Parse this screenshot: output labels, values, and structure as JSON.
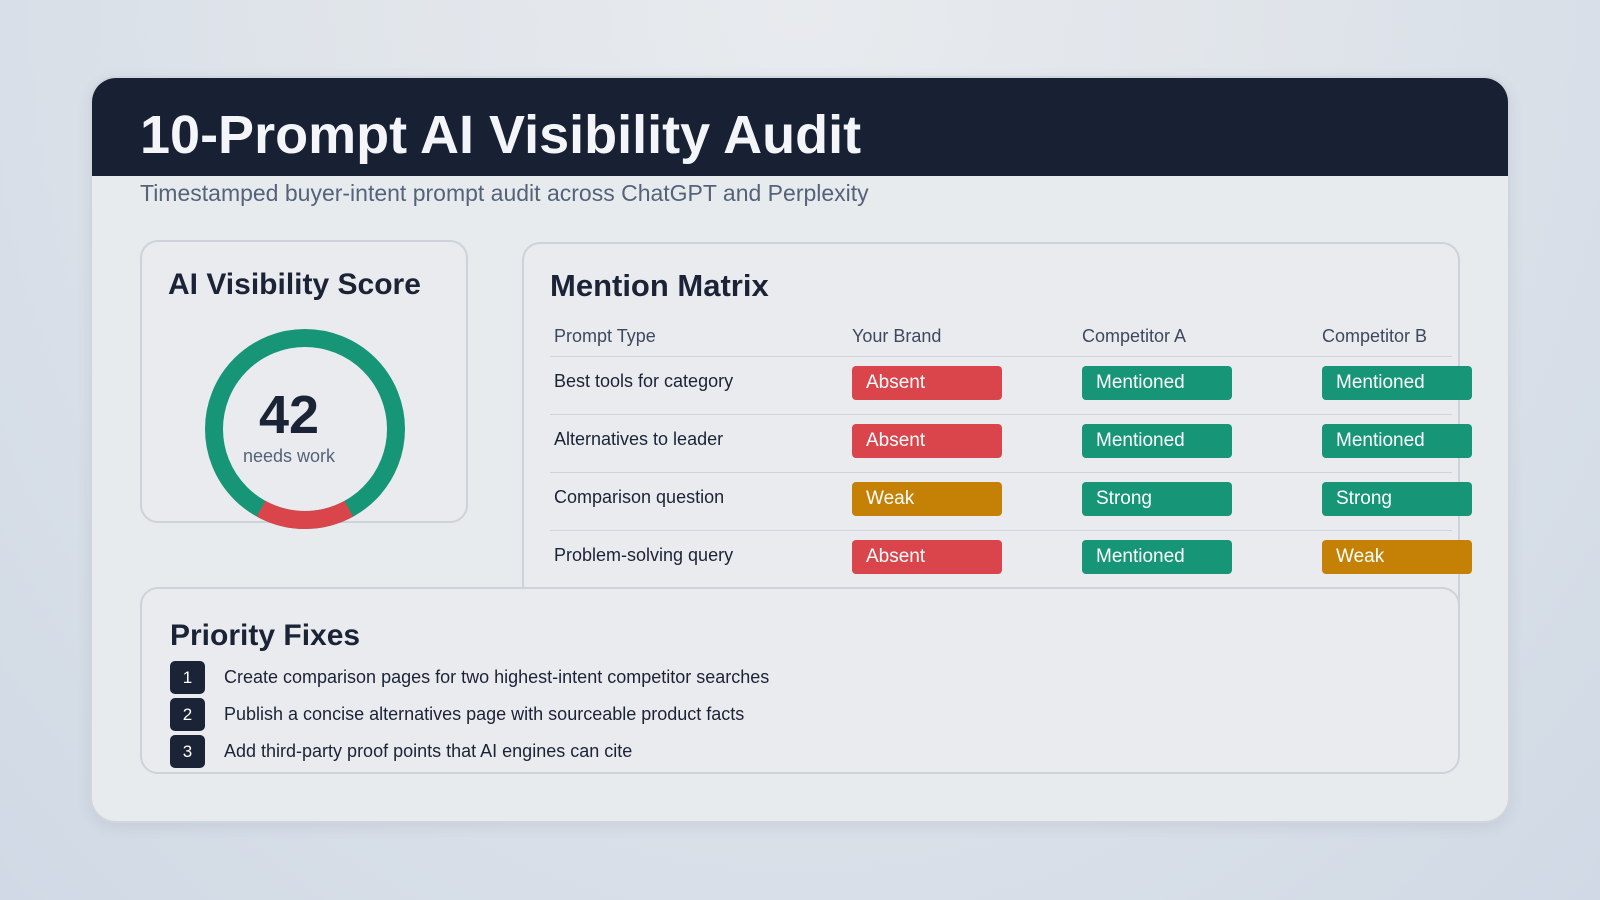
{
  "header": {
    "title": "10-Prompt AI Visibility Audit",
    "subtitle": "Timestamped buyer-intent prompt audit across ChatGPT and Perplexity"
  },
  "score": {
    "title": "AI Visibility Score",
    "value": "42",
    "caption": "needs work",
    "colors": {
      "ok": "#169677",
      "bad": "#d9454b"
    }
  },
  "matrix": {
    "title": "Mention Matrix",
    "columns": [
      "Prompt Type",
      "Your Brand",
      "Competitor A",
      "Competitor B"
    ],
    "rows": [
      {
        "label": "Best tools for category",
        "cells": [
          {
            "text": "Absent",
            "status": "absent"
          },
          {
            "text": "Mentioned",
            "status": "good"
          },
          {
            "text": "Mentioned",
            "status": "good"
          }
        ]
      },
      {
        "label": "Alternatives to leader",
        "cells": [
          {
            "text": "Absent",
            "status": "absent"
          },
          {
            "text": "Mentioned",
            "status": "good"
          },
          {
            "text": "Mentioned",
            "status": "good"
          }
        ]
      },
      {
        "label": "Comparison question",
        "cells": [
          {
            "text": "Weak",
            "status": "weak"
          },
          {
            "text": "Strong",
            "status": "good"
          },
          {
            "text": "Strong",
            "status": "good"
          }
        ]
      },
      {
        "label": "Problem-solving query",
        "cells": [
          {
            "text": "Absent",
            "status": "absent"
          },
          {
            "text": "Mentioned",
            "status": "good"
          },
          {
            "text": "Weak",
            "status": "weak"
          }
        ]
      }
    ],
    "status_colors": {
      "absent": "#d9454b",
      "good": "#169677",
      "weak": "#c58105"
    }
  },
  "fixes": {
    "title": "Priority Fixes",
    "items": [
      {
        "num": "1",
        "text": "Create comparison pages for two highest-intent competitor searches"
      },
      {
        "num": "2",
        "text": "Publish a concise alternatives page with sourceable product facts"
      },
      {
        "num": "3",
        "text": "Add third-party proof points that AI engines can cite"
      }
    ]
  }
}
